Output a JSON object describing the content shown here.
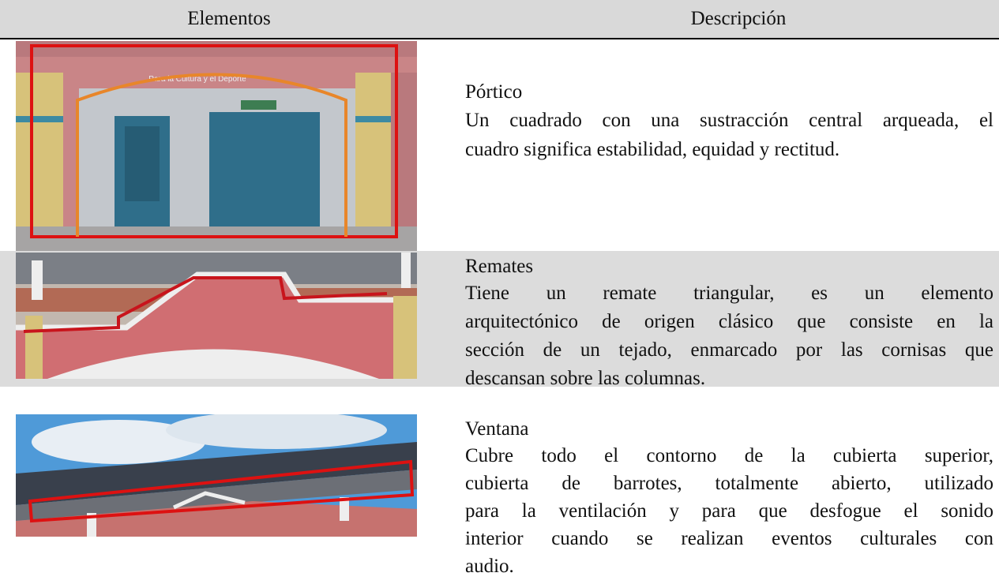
{
  "header": {
    "columns": [
      "Elementos",
      "Descripción"
    ]
  },
  "rows": [
    {
      "image_text": "Para la Cultura y el Deporte",
      "element": "Pórtico",
      "description": [
        "Un cuadrado con una sustracción central arqueada, el",
        "cuadro significa estabilidad, equidad y rectitud."
      ]
    },
    {
      "element": "Remates",
      "description": [
        "Tiene un remate triangular, es un elemento",
        "arquitectónico de origen clásico que consiste en la",
        "sección de un tejado, enmarcado por las cornisas que",
        "descansan sobre las columnas."
      ]
    },
    {
      "element": "Ventana",
      "description": [
        "Cubre todo el contorno de la cubierta superior,",
        "cubierta de barrotes, totalmente abierto, utilizado",
        "para la ventilación y para que desfogue el sonido",
        "interior cuando se realizan eventos culturales con",
        "audio."
      ]
    }
  ]
}
